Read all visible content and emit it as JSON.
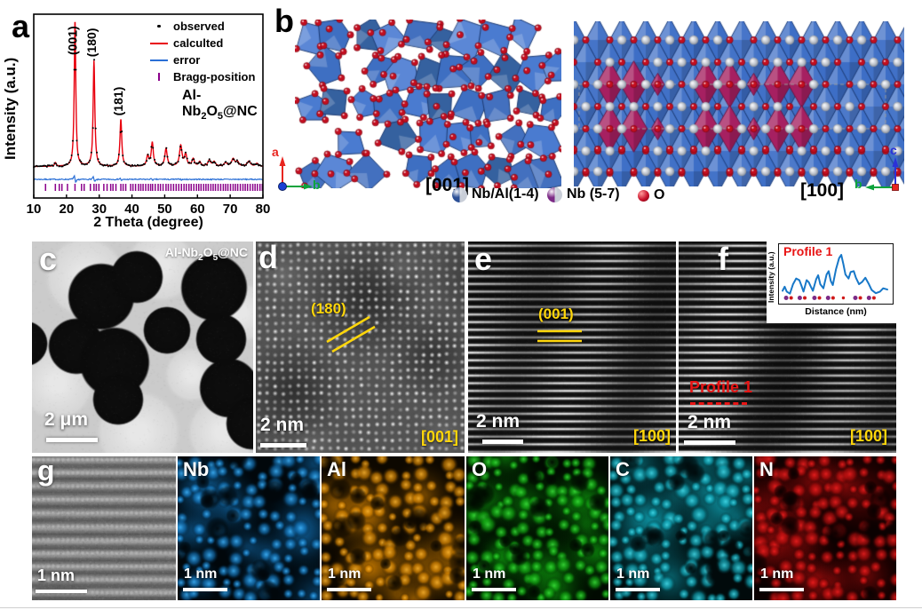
{
  "sample_name": {
    "prefix": "Al-Nb",
    "sub_2": "2",
    "mid": "O",
    "sub_5": "5",
    "suffix": "@NC"
  },
  "panel_a": {
    "letter": "a",
    "legend_note": "legend entries match chart_data.0.series"
  },
  "panel_b": {
    "letter": "b",
    "axis_left": {
      "up_label": "a",
      "right_label": "b",
      "view": "[001]"
    },
    "axis_right": {
      "up_label": "c",
      "left_label": "b",
      "view": "[100]"
    },
    "axis_colors": {
      "a": "#e8251f",
      "b": "#0ca33c",
      "c": "#2b32d8"
    },
    "legend": [
      {
        "label": "Nb/Al(1-4)",
        "color": "#2b4f96"
      },
      {
        "label": "Nb (5-7)",
        "color": "#7c2a86"
      },
      {
        "label": "O",
        "color": "#c8102a"
      }
    ],
    "polyhedra_colors": {
      "blue": "#3d6ec6",
      "magenta": "#a62061"
    }
  },
  "panel_c": {
    "letter": "c",
    "scale_bar": "2 μm"
  },
  "panel_d": {
    "letter": "d",
    "plane_label": "(180)",
    "zone_axis": "[001]",
    "scale_bar": "2 nm"
  },
  "panel_e": {
    "letter": "e",
    "plane_label": "(001)",
    "zone_axis": "[100]",
    "scale_bar": "2 nm"
  },
  "panel_f": {
    "letter": "f",
    "profile_label": "Profile 1",
    "zone_axis": "[100]",
    "scale_bar": "2 nm"
  },
  "panel_g": {
    "letter": "g",
    "scale_bar": "1 nm"
  },
  "element_maps": [
    {
      "label": "Nb",
      "scale_bar": "1 nm",
      "base": "#1272b8",
      "bright": "#3fb5ff"
    },
    {
      "label": "Al",
      "scale_bar": "1 nm",
      "base": "#d98500",
      "bright": "#ffb52e"
    },
    {
      "label": "O",
      "scale_bar": "1 nm",
      "base": "#0fa50f",
      "bright": "#3ae23a"
    },
    {
      "label": "C",
      "scale_bar": "1 nm",
      "base": "#0fa8ba",
      "bright": "#45dfee"
    },
    {
      "label": "N",
      "scale_bar": "1 nm",
      "base": "#b50d0d",
      "bright": "#f22020"
    }
  ],
  "chart_data": [
    {
      "id": "xrd-refinement",
      "type": "line",
      "title": "",
      "xlabel": "2 Theta (degree)",
      "ylabel": "Intensity (a.u.)",
      "xlim": [
        10,
        80
      ],
      "x_ticks": [
        10,
        20,
        30,
        40,
        50,
        60,
        70,
        80
      ],
      "grid": false,
      "legend_position": "top-right",
      "series": [
        {
          "name": "observed",
          "marker": "dot",
          "color": "#000000"
        },
        {
          "name": "calculted",
          "marker": "line",
          "color": "#e8000d"
        },
        {
          "name": "error",
          "marker": "line",
          "color": "#2a6fd6"
        },
        {
          "name": "Bragg-position",
          "marker": "tick",
          "color": "#8b008b"
        }
      ],
      "peaks": [
        {
          "two_theta": 16.6,
          "intensity": 2.5,
          "width": 0.3
        },
        {
          "two_theta": 22.6,
          "intensity": 100,
          "width": 0.28
        },
        {
          "two_theta": 28.4,
          "intensity": 72,
          "width": 0.3
        },
        {
          "two_theta": 36.6,
          "intensity": 32,
          "width": 0.33
        },
        {
          "two_theta": 44.8,
          "intensity": 7,
          "width": 0.4
        },
        {
          "two_theta": 46.2,
          "intensity": 16,
          "width": 0.38
        },
        {
          "two_theta": 50.4,
          "intensity": 12,
          "width": 0.42
        },
        {
          "two_theta": 54.9,
          "intensity": 14,
          "width": 0.46
        },
        {
          "two_theta": 56.4,
          "intensity": 8,
          "width": 0.4
        },
        {
          "two_theta": 58.7,
          "intensity": 5,
          "width": 0.45
        },
        {
          "two_theta": 60.7,
          "intensity": 3,
          "width": 0.4
        },
        {
          "two_theta": 63.6,
          "intensity": 4,
          "width": 0.5
        },
        {
          "two_theta": 65.1,
          "intensity": 3,
          "width": 0.5
        },
        {
          "two_theta": 68.6,
          "intensity": 2.5,
          "width": 0.5
        },
        {
          "two_theta": 70.9,
          "intensity": 5,
          "width": 0.55
        },
        {
          "two_theta": 72.2,
          "intensity": 3,
          "width": 0.5
        },
        {
          "two_theta": 75.7,
          "intensity": 3.5,
          "width": 0.6
        },
        {
          "two_theta": 78.2,
          "intensity": 2,
          "width": 0.5
        }
      ],
      "labeled_peaks": [
        {
          "hkl": "(001)",
          "two_theta": 22.6
        },
        {
          "hkl": "(180)",
          "two_theta": 28.4
        },
        {
          "hkl": "(181)",
          "two_theta": 36.6
        }
      ],
      "bragg_positions": [
        13.6,
        16.6,
        17.8,
        18.6,
        20.3,
        22.6,
        24.6,
        25.4,
        27.3,
        28.4,
        29.1,
        29.9,
        31.4,
        32.4,
        33.5,
        34.2,
        35.1,
        36.6,
        37.3,
        38.1,
        39.6,
        40.3,
        41.1,
        42.0,
        42.7,
        43.4,
        44.2,
        45.0,
        45.7,
        46.3,
        47.1,
        48.0,
        48.7,
        49.5,
        50.4,
        51.1,
        51.9,
        52.7,
        53.5,
        54.3,
        55.1,
        55.9,
        56.6,
        57.4,
        58.1,
        58.9,
        59.7,
        60.4,
        61.1,
        61.9,
        62.6,
        63.3,
        64.1,
        64.8,
        65.5,
        66.3,
        67.1,
        67.9,
        68.6,
        69.3,
        70.1,
        70.9,
        71.6,
        72.3,
        73.1,
        73.9,
        74.6,
        75.3,
        76.1,
        76.9,
        77.6,
        78.3,
        79.1,
        79.8
      ]
    },
    {
      "id": "profile-1",
      "type": "line",
      "title": "Profile 1",
      "xlabel": "Distance (nm)",
      "ylabel": "Intensity (a.u.)",
      "line_color": "#1878c8",
      "points": [
        [
          0.0,
          0.12
        ],
        [
          0.02,
          0.22
        ],
        [
          0.04,
          0.1
        ],
        [
          0.07,
          0.05
        ],
        [
          0.1,
          0.28
        ],
        [
          0.13,
          0.42
        ],
        [
          0.16,
          0.38
        ],
        [
          0.18,
          0.25
        ],
        [
          0.2,
          0.1
        ],
        [
          0.23,
          0.38
        ],
        [
          0.25,
          0.33
        ],
        [
          0.27,
          0.22
        ],
        [
          0.29,
          0.12
        ],
        [
          0.32,
          0.4
        ],
        [
          0.34,
          0.5
        ],
        [
          0.36,
          0.28
        ],
        [
          0.39,
          0.18
        ],
        [
          0.42,
          0.52
        ],
        [
          0.44,
          0.6
        ],
        [
          0.46,
          0.36
        ],
        [
          0.48,
          0.26
        ],
        [
          0.51,
          0.65
        ],
        [
          0.54,
          0.92
        ],
        [
          0.56,
          1.0
        ],
        [
          0.58,
          0.78
        ],
        [
          0.6,
          0.52
        ],
        [
          0.63,
          0.42
        ],
        [
          0.65,
          0.58
        ],
        [
          0.68,
          0.6
        ],
        [
          0.7,
          0.44
        ],
        [
          0.73,
          0.28
        ],
        [
          0.76,
          0.34
        ],
        [
          0.79,
          0.44
        ],
        [
          0.82,
          0.3
        ],
        [
          0.85,
          0.14
        ],
        [
          0.89,
          0.06
        ],
        [
          0.93,
          0.1
        ],
        [
          0.96,
          0.18
        ],
        [
          1.0,
          0.15
        ]
      ],
      "atom_markers": [
        {
          "x": 0.06,
          "colors": [
            "#7c2a86",
            "#d01818"
          ]
        },
        {
          "x": 0.19,
          "colors": [
            "#7c2a86",
            "#d01818"
          ]
        },
        {
          "x": 0.33,
          "colors": [
            "#7c2a86",
            "#d01818"
          ]
        },
        {
          "x": 0.46,
          "colors": [
            "#7c2a86",
            "#d01818"
          ]
        },
        {
          "x": 0.58,
          "colors": [
            "#d01818"
          ]
        },
        {
          "x": 0.72,
          "colors": [
            "#7c2a86",
            "#d01818"
          ]
        },
        {
          "x": 0.85,
          "colors": [
            "#7c2a86",
            "#d01818"
          ]
        }
      ]
    }
  ]
}
